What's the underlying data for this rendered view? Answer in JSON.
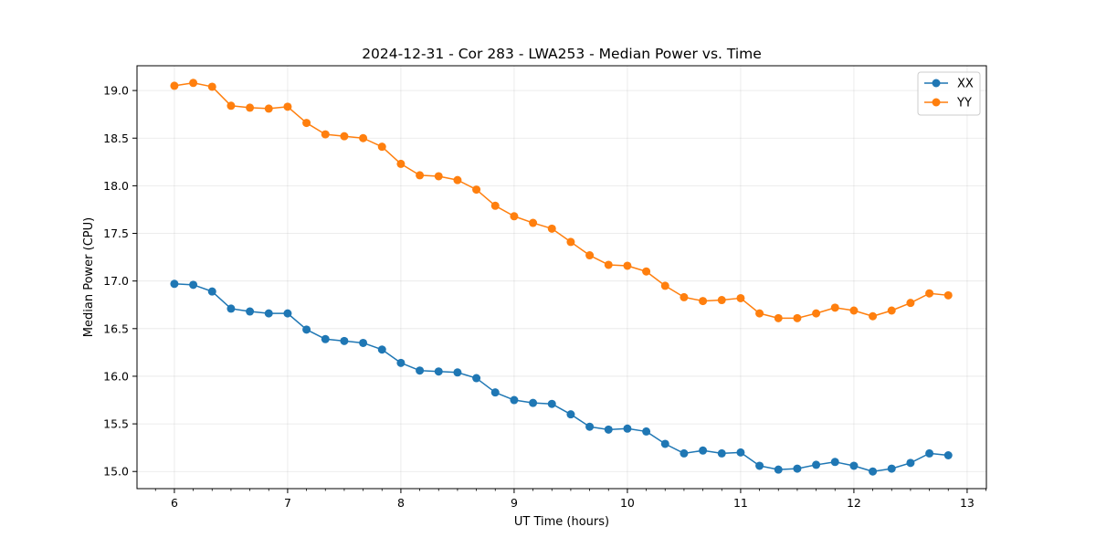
{
  "chart_data": {
    "type": "line",
    "title": "2024-12-31 - Cor 283 - LWA253 - Median Power vs. Time",
    "xlabel": "UT Time (hours)",
    "ylabel": "Median Power (CPU)",
    "xlim": [
      5.67,
      13.17
    ],
    "ylim": [
      14.82,
      19.26
    ],
    "xticks": [
      6,
      7,
      8,
      9,
      10,
      11,
      12,
      13
    ],
    "xtick_labels": [
      "6",
      "7",
      "8",
      "9",
      "10",
      "11",
      "12",
      "13"
    ],
    "yticks": [
      15.0,
      15.5,
      16.0,
      16.5,
      17.0,
      17.5,
      18.0,
      18.5,
      19.0
    ],
    "ytick_labels": [
      "15.0",
      "15.5",
      "16.0",
      "16.5",
      "17.0",
      "17.5",
      "18.0",
      "18.5",
      "19.0"
    ],
    "grid": true,
    "legend_position": "top-right",
    "x": [
      6.0,
      6.1667,
      6.3333,
      6.5,
      6.6667,
      6.8333,
      7.0,
      7.1667,
      7.3333,
      7.5,
      7.6667,
      7.8333,
      8.0,
      8.1667,
      8.3333,
      8.5,
      8.6667,
      8.8333,
      9.0,
      9.1667,
      9.3333,
      9.5,
      9.6667,
      9.8333,
      10.0,
      10.1667,
      10.3333,
      10.5,
      10.6667,
      10.8333,
      11.0,
      11.1667,
      11.3333,
      11.5,
      11.6667,
      11.8333,
      12.0,
      12.1667,
      12.3333,
      12.5,
      12.6667,
      12.8333
    ],
    "series": [
      {
        "name": "XX",
        "color": "#1f77b4",
        "values": [
          16.97,
          16.96,
          16.89,
          16.71,
          16.68,
          16.66,
          16.66,
          16.49,
          16.39,
          16.37,
          16.35,
          16.28,
          16.14,
          16.06,
          16.05,
          16.04,
          15.98,
          15.83,
          15.75,
          15.72,
          15.71,
          15.6,
          15.47,
          15.44,
          15.45,
          15.42,
          15.29,
          15.19,
          15.22,
          15.19,
          15.2,
          15.06,
          15.02,
          15.03,
          15.07,
          15.1,
          15.06,
          15.0,
          15.03,
          15.09,
          15.19,
          15.17
        ]
      },
      {
        "name": "YY",
        "color": "#ff7f0e",
        "values": [
          19.05,
          19.08,
          19.04,
          18.84,
          18.82,
          18.81,
          18.83,
          18.66,
          18.54,
          18.52,
          18.5,
          18.41,
          18.23,
          18.11,
          18.1,
          18.06,
          17.96,
          17.79,
          17.68,
          17.61,
          17.55,
          17.41,
          17.27,
          17.17,
          17.16,
          17.1,
          16.95,
          16.83,
          16.79,
          16.8,
          16.82,
          16.66,
          16.61,
          16.61,
          16.66,
          16.72,
          16.69,
          16.63,
          16.69,
          16.77,
          16.87,
          16.85
        ]
      }
    ]
  }
}
